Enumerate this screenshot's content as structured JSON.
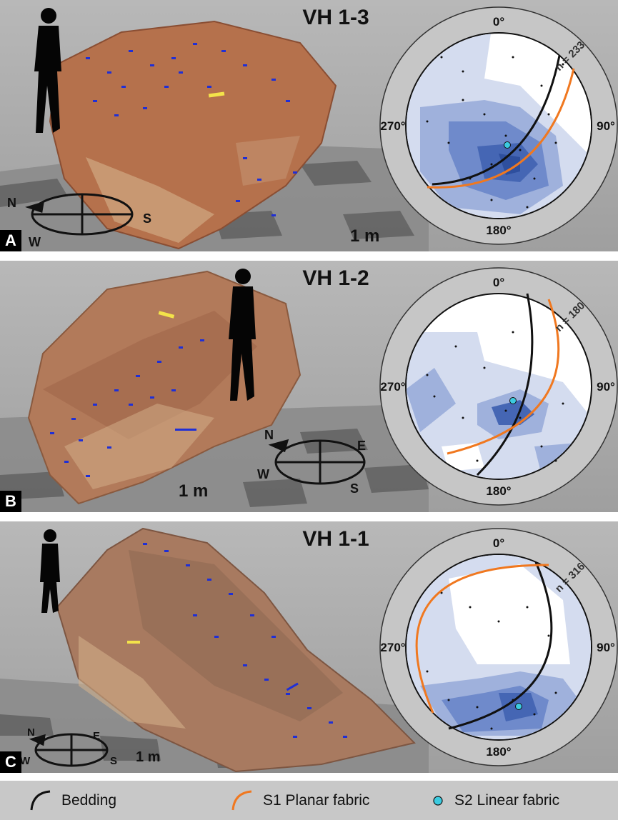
{
  "panels": [
    {
      "letter": "A",
      "title": "VH 1-3",
      "n_label": "n = 233",
      "scale": "1 m",
      "angles": {
        "top": "0°",
        "right": "90°",
        "bottom": "180°",
        "left": "270°"
      }
    },
    {
      "letter": "B",
      "title": "VH 1-2",
      "n_label": "n = 180",
      "scale": "1 m",
      "angles": {
        "top": "0°",
        "right": "90°",
        "bottom": "180°",
        "left": "270°"
      }
    },
    {
      "letter": "C",
      "title": "VH 1-1",
      "n_label": "n = 316",
      "scale": "1 m",
      "angles": {
        "top": "0°",
        "right": "90°",
        "bottom": "180°",
        "left": "270°"
      }
    }
  ],
  "compass_letters": {
    "north": "N",
    "east": "E",
    "south": "S",
    "west": "W"
  },
  "legend": {
    "bedding": "Bedding",
    "s1": "S1 Planar fabric",
    "s2": "S2 Linear fabric"
  },
  "colors": {
    "bedding": "#111111",
    "s1": "#f07820",
    "s2": "#3ccbe0",
    "contour_1": "#d4dcef",
    "contour_2": "#9fb1dc",
    "contour_3": "#6f8acb",
    "contour_4": "#4566b4",
    "rock": "#a86a48",
    "pole_markers": "#1f2fd6"
  }
}
